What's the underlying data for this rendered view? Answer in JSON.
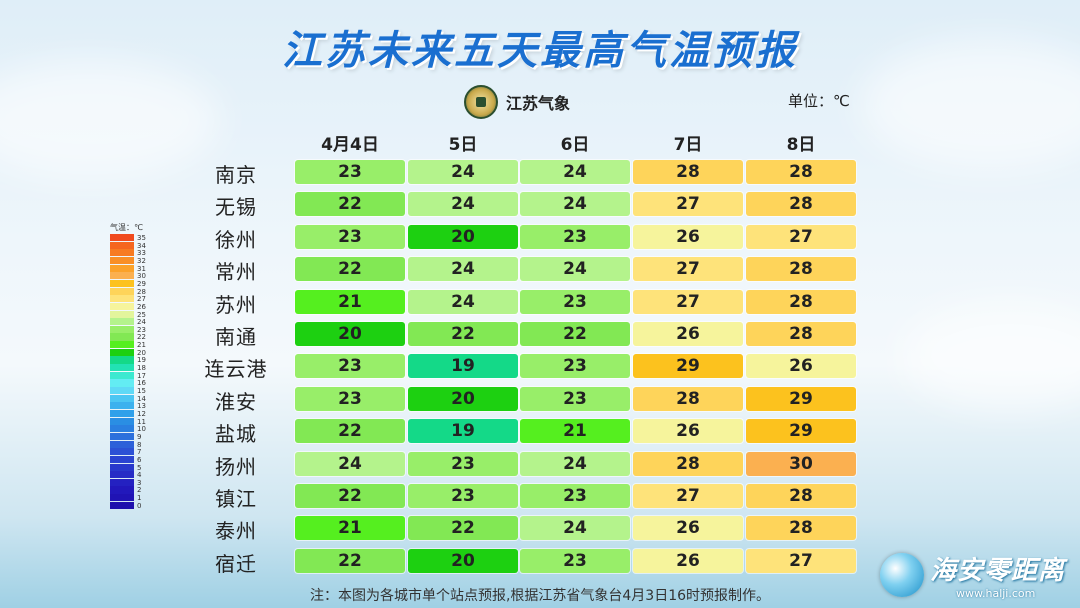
{
  "title": "江苏未来五天最高气温预报",
  "logo": {
    "name": "江苏气象",
    "icon": "meteorological-seal-icon"
  },
  "unit": "单位：℃",
  "legend": {
    "title": "气温：℃",
    "levels": [
      35,
      34,
      33,
      32,
      31,
      30,
      29,
      28,
      27,
      26,
      25,
      24,
      23,
      22,
      21,
      20,
      19,
      18,
      17,
      16,
      15,
      14,
      13,
      12,
      11,
      10,
      9,
      8,
      7,
      6,
      5,
      4,
      3,
      2,
      1,
      0
    ],
    "colors": {
      "35": "#f04a1e",
      "34": "#f5661f",
      "33": "#f77b22",
      "32": "#f98f26",
      "31": "#fba22a",
      "30": "#fbb050",
      "29": "#fcc21e",
      "28": "#fed45a",
      "27": "#fee37a",
      "26": "#f6f49c",
      "25": "#e3f59c",
      "24": "#b4f38c",
      "23": "#98ee69",
      "22": "#82e854",
      "21": "#55ef1f",
      "20": "#1dd011",
      "19": "#14d988",
      "18": "#22e2b4",
      "17": "#3ce9d0",
      "16": "#63ecf3",
      "15": "#5fd9f6",
      "14": "#4cc6f3",
      "13": "#3cb1ee",
      "12": "#2fa0ea",
      "11": "#2a8ee3",
      "10": "#2a7fe0",
      "9": "#2c70dc",
      "8": "#2d60d9",
      "7": "#2c51d5",
      "6": "#2a44d1",
      "5": "#2838cc",
      "4": "#262cc6",
      "3": "#2421c1",
      "2": "#2218bb",
      "1": "#2013b4",
      "0": "#1e10ad"
    }
  },
  "chart_data": {
    "type": "table",
    "title": "江苏未来五天最高气温预报",
    "columns": [
      "4月4日",
      "5日",
      "6日",
      "7日",
      "8日"
    ],
    "rows": [
      {
        "city": "南京",
        "values": [
          23,
          24,
          24,
          28,
          28
        ]
      },
      {
        "city": "无锡",
        "values": [
          22,
          24,
          24,
          27,
          28
        ]
      },
      {
        "city": "徐州",
        "values": [
          23,
          20,
          23,
          26,
          27
        ]
      },
      {
        "city": "常州",
        "values": [
          22,
          24,
          24,
          27,
          28
        ]
      },
      {
        "city": "苏州",
        "values": [
          21,
          24,
          23,
          27,
          28
        ]
      },
      {
        "city": "南通",
        "values": [
          20,
          22,
          22,
          26,
          28
        ]
      },
      {
        "city": "连云港",
        "values": [
          23,
          19,
          23,
          29,
          26
        ]
      },
      {
        "city": "淮安",
        "values": [
          23,
          20,
          23,
          28,
          29
        ]
      },
      {
        "city": "盐城",
        "values": [
          22,
          19,
          21,
          26,
          29
        ]
      },
      {
        "city": "扬州",
        "values": [
          24,
          23,
          24,
          28,
          30
        ]
      },
      {
        "city": "镇江",
        "values": [
          22,
          23,
          23,
          27,
          28
        ]
      },
      {
        "city": "泰州",
        "values": [
          21,
          22,
          24,
          26,
          28
        ]
      },
      {
        "city": "宿迁",
        "values": [
          22,
          20,
          23,
          26,
          27
        ]
      }
    ]
  },
  "note": "注：本图为各城市单个站点预报,根据江苏省气象台4月3日16时预报制作。",
  "watermark": {
    "name": "海安零距离",
    "url": "www.halji.com"
  }
}
